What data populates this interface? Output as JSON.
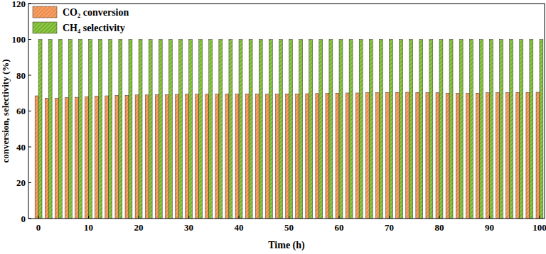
{
  "chart_data": {
    "type": "bar",
    "x_label": "Time (h)",
    "y_label": "conversion, selectivity (%)",
    "x": [
      0,
      2,
      4,
      6,
      8,
      10,
      12,
      14,
      16,
      18,
      20,
      22,
      24,
      26,
      28,
      30,
      32,
      34,
      36,
      38,
      40,
      42,
      44,
      46,
      48,
      50,
      52,
      54,
      56,
      58,
      60,
      62,
      64,
      66,
      68,
      70,
      72,
      74,
      76,
      78,
      80,
      82,
      84,
      86,
      88,
      90,
      92,
      94,
      96,
      98,
      100
    ],
    "series": [
      {
        "name": "CO₂ conversion",
        "color": "#f5a063",
        "values": [
          68.5,
          67.2,
          67.2,
          67.5,
          67.7,
          68.0,
          68.3,
          68.5,
          68.8,
          68.8,
          69.0,
          69.0,
          69.2,
          69.2,
          69.3,
          69.4,
          69.4,
          69.4,
          69.5,
          69.5,
          69.5,
          69.6,
          69.6,
          69.4,
          69.5,
          69.6,
          69.6,
          69.7,
          69.8,
          69.9,
          70.0,
          70.1,
          70.1,
          70.3,
          70.3,
          70.4,
          70.4,
          70.5,
          70.4,
          70.3,
          70.2,
          70.0,
          69.9,
          69.9,
          70.0,
          70.2,
          70.3,
          70.3,
          70.4,
          70.4,
          70.5
        ]
      },
      {
        "name": "CH₄ selectivity",
        "color": "#8dc63f",
        "values": [
          100,
          100,
          100,
          100,
          100,
          100,
          100,
          100,
          100,
          100,
          100,
          100,
          100,
          100,
          100,
          100,
          100,
          100,
          100,
          100,
          100,
          100,
          100,
          100,
          100,
          100,
          100,
          100,
          100,
          100,
          100,
          100,
          100,
          100,
          100,
          100,
          100,
          100,
          100,
          100,
          100,
          100,
          100,
          100,
          100,
          100,
          100,
          100,
          100,
          100,
          100
        ]
      }
    ],
    "xlim": [
      -2,
      101
    ],
    "xticks": [
      0,
      10,
      20,
      30,
      40,
      50,
      60,
      70,
      80,
      90,
      100
    ],
    "ylim": [
      0,
      120
    ],
    "yticks": [
      0,
      20,
      40,
      60,
      80,
      100,
      120
    ],
    "legend": "upper left",
    "grid": false
  }
}
